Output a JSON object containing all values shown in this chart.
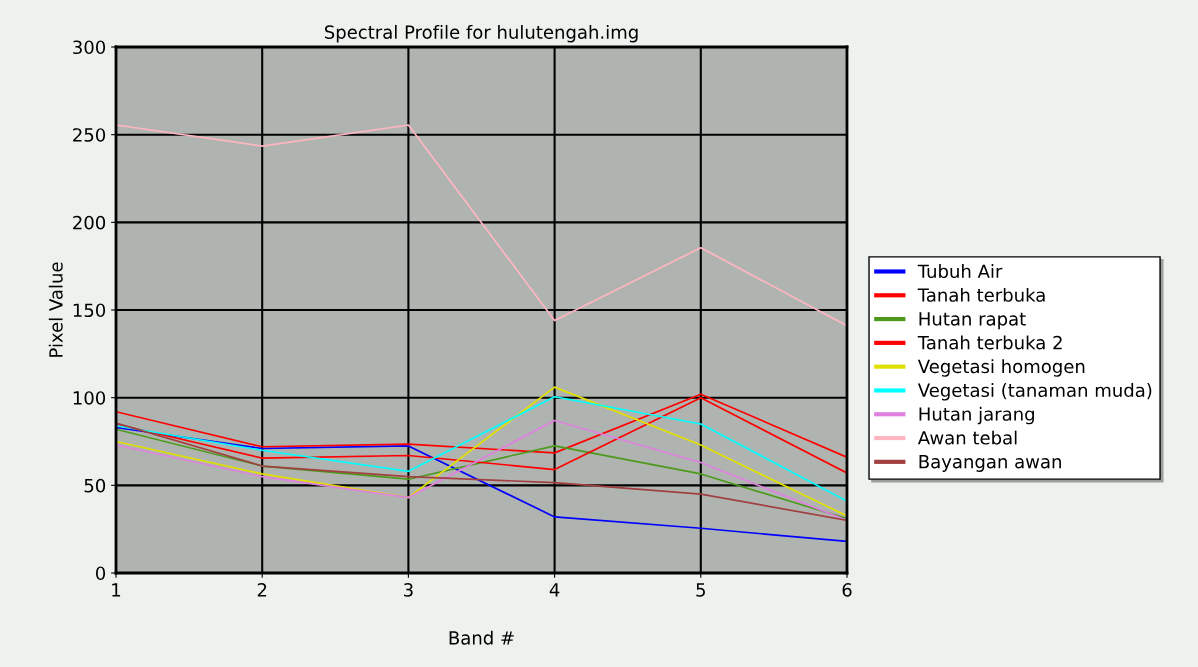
{
  "chart_data": {
    "type": "line",
    "title": "Spectral Profile for hulutengah.img",
    "xlabel": "Band #",
    "ylabel": "Pixel Value",
    "x": [
      1,
      2,
      3,
      4,
      5,
      6
    ],
    "xlim": [
      1,
      6
    ],
    "xticks": [
      1,
      2,
      3,
      4,
      5,
      6
    ],
    "ylim": [
      0,
      300
    ],
    "yticks": [
      0,
      50,
      100,
      150,
      200,
      250,
      300
    ],
    "grid": true,
    "legend": "right",
    "marker": "none",
    "line_style": "solid",
    "series": [
      {
        "name": "Tubuh Air",
        "color": "#0000ff",
        "values": [
          83,
          71,
          72.5,
          32,
          25.5,
          18
        ]
      },
      {
        "name": "Tanah terbuka",
        "color": "#ff0000",
        "values": [
          92,
          72,
          73.5,
          68.5,
          102,
          66
        ]
      },
      {
        "name": "Hutan rapat",
        "color": "#4c9a1c",
        "values": [
          82,
          61,
          53.5,
          72.5,
          56.5,
          31
        ]
      },
      {
        "name": "Tanah terbuka 2",
        "color": "#ff0000",
        "values": [
          85,
          65.5,
          67,
          59,
          100,
          57
        ]
      },
      {
        "name": "Vegetasi homogen",
        "color": "#e0e000",
        "values": [
          75,
          56.5,
          43,
          106,
          73,
          32.5
        ]
      },
      {
        "name": "Vegetasi (tanaman muda)",
        "color": "#00ffff",
        "values": [
          84,
          70,
          58,
          100.5,
          85,
          41
        ]
      },
      {
        "name": "Hutan jarang",
        "color": "#e080e0",
        "values": [
          73,
          55,
          43,
          87,
          63,
          30
        ]
      },
      {
        "name": "Awan tebal",
        "color": "#ffb6c1",
        "values": [
          255.5,
          243.5,
          255.5,
          144,
          185.5,
          141
        ]
      },
      {
        "name": "Bayangan awan",
        "color": "#a04040",
        "values": [
          85.5,
          61,
          55,
          51.5,
          45,
          30
        ]
      }
    ]
  }
}
